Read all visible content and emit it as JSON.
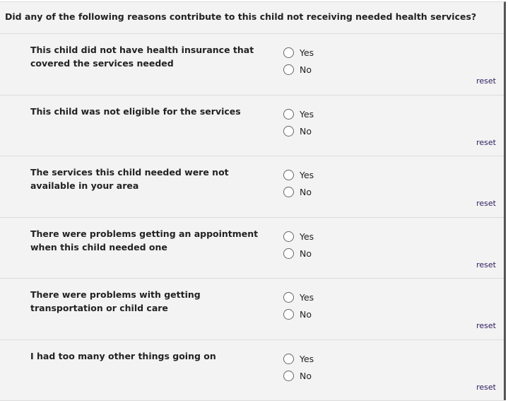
{
  "question": "Did any of the following reasons contribute to this child not receiving needed health services?",
  "options": {
    "yes": "Yes",
    "no": "No"
  },
  "reset_label": "reset",
  "items": [
    {
      "label": "This child did not have health insurance that covered the services needed",
      "selected": null
    },
    {
      "label": "This child was not eligible for the services",
      "selected": null
    },
    {
      "label": "The services this child needed were not available in your area",
      "selected": null
    },
    {
      "label": "There were problems getting an appointment when this child needed one",
      "selected": null
    },
    {
      "label": "There were problems with getting transportation or child care",
      "selected": null
    },
    {
      "label": "I had too many other things going on",
      "selected": null
    }
  ]
}
